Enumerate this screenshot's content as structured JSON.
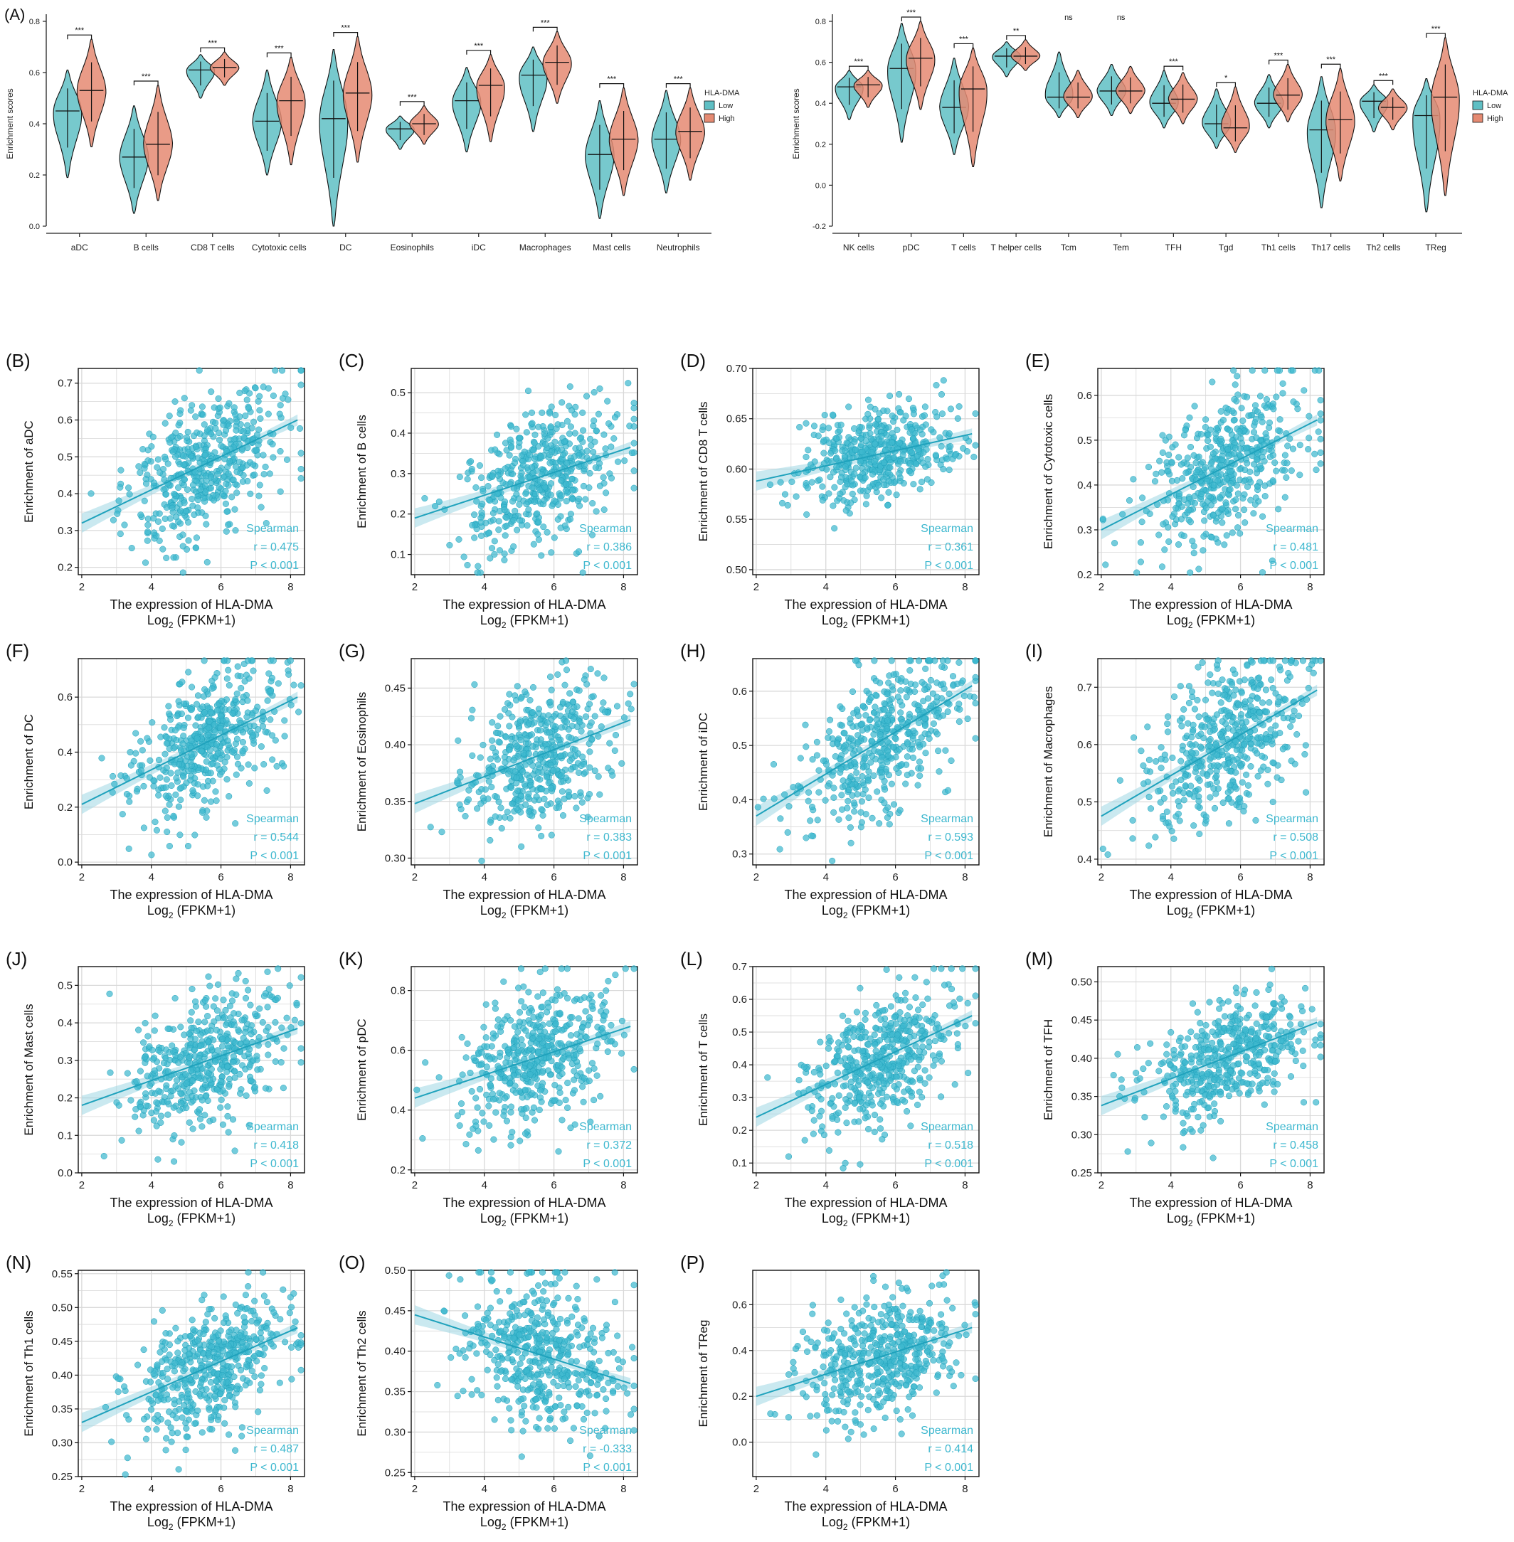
{
  "colors": {
    "low": "#5FBFC4",
    "high": "#E58A72",
    "point": "#3EB8CF",
    "line": "#1FA2BC",
    "band": "#9FD7E3",
    "grid": "#D9D9D9",
    "axis": "#222222"
  },
  "panel_a": {
    "label": "(A)",
    "ylabel": "Enrichment scores",
    "legend_title": "HLA-DMA",
    "legend_low": "Low",
    "legend_high": "High"
  },
  "scatter_common": {
    "xlabel": "The expression of HLA-DMA",
    "xlabel2_main": "Log",
    "xlabel2_sub": "2",
    "xlabel2_tail": " (FPKM+1)",
    "method": "Spearman"
  },
  "chart_data": [
    {
      "type": "violin",
      "panel": "A-left",
      "ylabel": "Enrichment scores",
      "ylim": [
        0.0,
        0.8
      ],
      "yticks": [
        "0.0",
        "0.2",
        "0.4",
        "0.6",
        "0.8"
      ],
      "groups": [
        "Low",
        "High"
      ],
      "legend_title": "HLA-DMA",
      "categories": [
        "aDC",
        "B cells",
        "CD8 T cells",
        "Cytotoxic cells",
        "DC",
        "Eosinophils",
        "iDC",
        "Macrophages",
        "Mast cells",
        "Neutrophils"
      ],
      "significance": [
        "***",
        "***",
        "***",
        "***",
        "***",
        "***",
        "***",
        "***",
        "***",
        "***"
      ],
      "series": [
        {
          "name": "Low",
          "median": [
            0.45,
            0.27,
            0.61,
            0.41,
            0.42,
            0.38,
            0.49,
            0.59,
            0.28,
            0.34
          ],
          "min": [
            0.19,
            0.05,
            0.5,
            0.2,
            0.0,
            0.3,
            0.29,
            0.37,
            0.03,
            0.13
          ],
          "max": [
            0.61,
            0.47,
            0.67,
            0.61,
            0.69,
            0.43,
            0.62,
            0.7,
            0.49,
            0.53
          ]
        },
        {
          "name": "High",
          "median": [
            0.53,
            0.32,
            0.62,
            0.49,
            0.52,
            0.4,
            0.55,
            0.64,
            0.34,
            0.37
          ],
          "min": [
            0.31,
            0.1,
            0.55,
            0.24,
            0.25,
            0.32,
            0.33,
            0.48,
            0.12,
            0.18
          ],
          "max": [
            0.73,
            0.55,
            0.68,
            0.66,
            0.74,
            0.47,
            0.67,
            0.76,
            0.54,
            0.54
          ]
        }
      ]
    },
    {
      "type": "violin",
      "panel": "A-right",
      "ylabel": "Enrichment scores",
      "ylim": [
        -0.2,
        0.8
      ],
      "yticks": [
        "-0.2",
        "0.0",
        "0.2",
        "0.4",
        "0.6",
        "0.8"
      ],
      "groups": [
        "Low",
        "High"
      ],
      "legend_title": "HLA-DMA",
      "categories": [
        "NK cells",
        "pDC",
        "T cells",
        "T helper cells",
        "Tcm",
        "Tem",
        "TFH",
        "Tgd",
        "Th1 cells",
        "Th17 cells",
        "Th2 cells",
        "TReg"
      ],
      "significance": [
        "***",
        "***",
        "***",
        "**",
        "ns",
        "ns",
        "***",
        "*",
        "***",
        "***",
        "***",
        "***"
      ],
      "series": [
        {
          "name": "Low",
          "median": [
            0.48,
            0.57,
            0.38,
            0.63,
            0.43,
            0.46,
            0.4,
            0.3,
            0.4,
            0.27,
            0.41,
            0.34
          ],
          "min": [
            0.32,
            0.21,
            0.15,
            0.53,
            0.33,
            0.34,
            0.28,
            0.18,
            0.28,
            -0.11,
            0.26,
            -0.13
          ],
          "max": [
            0.56,
            0.79,
            0.62,
            0.7,
            0.65,
            0.59,
            0.56,
            0.47,
            0.54,
            0.53,
            0.49,
            0.52
          ]
        },
        {
          "name": "High",
          "median": [
            0.49,
            0.62,
            0.47,
            0.63,
            0.43,
            0.46,
            0.42,
            0.28,
            0.44,
            0.32,
            0.38,
            0.43
          ],
          "min": [
            0.38,
            0.37,
            0.09,
            0.56,
            0.33,
            0.35,
            0.3,
            0.16,
            0.31,
            0.02,
            0.27,
            -0.05
          ],
          "max": [
            0.56,
            0.8,
            0.67,
            0.71,
            0.56,
            0.58,
            0.55,
            0.48,
            0.59,
            0.57,
            0.47,
            0.72
          ]
        }
      ]
    },
    {
      "type": "scatter",
      "panel": "(B)",
      "ylabel": "Enrichment of aDC",
      "ylim": [
        0.18,
        0.74
      ],
      "yticks": [
        "0.2",
        "0.3",
        "0.4",
        "0.5",
        "0.6",
        "0.7"
      ],
      "xlim": [
        1.9,
        8.4
      ],
      "xticks": [
        "2",
        "4",
        "6",
        "8"
      ],
      "r_text": "r = 0.475",
      "p_text": "P < 0.001",
      "fit": {
        "y_at_2": 0.32,
        "y_at_8.2": 0.6
      },
      "points": {
        "n": 480,
        "x_mean": 5.8,
        "x_sd": 1.1,
        "resid_sd": 0.095,
        "seed": 11
      }
    },
    {
      "type": "scatter",
      "panel": "(C)",
      "ylabel": "Enrichment of B cells",
      "ylim": [
        0.05,
        0.56
      ],
      "yticks": [
        "0.1",
        "0.2",
        "0.3",
        "0.4",
        "0.5"
      ],
      "xlim": [
        1.9,
        8.4
      ],
      "xticks": [
        "2",
        "4",
        "6",
        "8"
      ],
      "r_text": "r = 0.386",
      "p_text": "P < 0.001",
      "fit": {
        "y_at_2": 0.19,
        "y_at_8.2": 0.365
      },
      "points": {
        "n": 480,
        "x_mean": 5.8,
        "x_sd": 1.1,
        "resid_sd": 0.085,
        "seed": 12
      }
    },
    {
      "type": "scatter",
      "panel": "(D)",
      "ylabel": "Enrichment of CD8 T cells",
      "ylim": [
        0.495,
        0.7
      ],
      "yticks": [
        "0.50",
        "0.55",
        "0.60",
        "0.65",
        "0.70"
      ],
      "xlim": [
        1.9,
        8.4
      ],
      "xticks": [
        "2",
        "4",
        "6",
        "8"
      ],
      "r_text": "r = 0.361",
      "p_text": "P < 0.001",
      "fit": {
        "y_at_2": 0.588,
        "y_at_8.2": 0.635
      },
      "points": {
        "n": 480,
        "x_mean": 5.8,
        "x_sd": 1.1,
        "resid_sd": 0.022,
        "seed": 13
      }
    },
    {
      "type": "scatter",
      "panel": "(E)",
      "ylabel": "Enrichment of Cytotoxic cells",
      "ylim": [
        0.2,
        0.66
      ],
      "yticks": [
        "0.2",
        "0.3",
        "0.4",
        "0.5",
        "0.6"
      ],
      "xlim": [
        1.9,
        8.4
      ],
      "xticks": [
        "2",
        "4",
        "6",
        "8"
      ],
      "r_text": "r = 0.481",
      "p_text": "P < 0.001",
      "fit": {
        "y_at_2": 0.3,
        "y_at_8.2": 0.545
      },
      "points": {
        "n": 480,
        "x_mean": 5.8,
        "x_sd": 1.1,
        "resid_sd": 0.08,
        "seed": 14
      }
    },
    {
      "type": "scatter",
      "panel": "(F)",
      "ylabel": "Enrichment of DC",
      "ylim": [
        -0.01,
        0.74
      ],
      "yticks": [
        "0.0",
        "0.2",
        "0.4",
        "0.6"
      ],
      "xlim": [
        1.9,
        8.4
      ],
      "xticks": [
        "2",
        "4",
        "6",
        "8"
      ],
      "r_text": "r = 0.544",
      "p_text": "P < 0.001",
      "fit": {
        "y_at_2": 0.21,
        "y_at_8.2": 0.6
      },
      "points": {
        "n": 480,
        "x_mean": 5.8,
        "x_sd": 1.1,
        "resid_sd": 0.11,
        "seed": 15
      }
    },
    {
      "type": "scatter",
      "panel": "(G)",
      "ylabel": "Enrichment of Eosinophils",
      "ylim": [
        0.294,
        0.476
      ],
      "yticks": [
        "0.30",
        "0.35",
        "0.40",
        "0.45"
      ],
      "xlim": [
        1.9,
        8.4
      ],
      "xticks": [
        "2",
        "4",
        "6",
        "8"
      ],
      "r_text": "r = 0.383",
      "p_text": "P < 0.001",
      "fit": {
        "y_at_2": 0.348,
        "y_at_8.2": 0.422
      },
      "points": {
        "n": 480,
        "x_mean": 5.8,
        "x_sd": 1.1,
        "resid_sd": 0.03,
        "seed": 16
      }
    },
    {
      "type": "scatter",
      "panel": "(H)",
      "ylabel": "Enrichment of iDC",
      "ylim": [
        0.28,
        0.66
      ],
      "yticks": [
        "0.3",
        "0.4",
        "0.5",
        "0.6"
      ],
      "xlim": [
        1.9,
        8.4
      ],
      "xticks": [
        "2",
        "4",
        "6",
        "8"
      ],
      "r_text": "r = 0.593",
      "p_text": "P < 0.001",
      "fit": {
        "y_at_2": 0.37,
        "y_at_8.2": 0.61
      },
      "points": {
        "n": 480,
        "x_mean": 5.8,
        "x_sd": 1.1,
        "resid_sd": 0.065,
        "seed": 17
      }
    },
    {
      "type": "scatter",
      "panel": "(I)",
      "ylabel": "Enrichment of Macrophages",
      "ylim": [
        0.39,
        0.75
      ],
      "yticks": [
        "0.4",
        "0.5",
        "0.6",
        "0.7"
      ],
      "xlim": [
        1.9,
        8.4
      ],
      "xticks": [
        "2",
        "4",
        "6",
        "8"
      ],
      "r_text": "r = 0.508",
      "p_text": "P < 0.001",
      "fit": {
        "y_at_2": 0.475,
        "y_at_8.2": 0.695
      },
      "points": {
        "n": 480,
        "x_mean": 5.8,
        "x_sd": 1.1,
        "resid_sd": 0.065,
        "seed": 18
      }
    },
    {
      "type": "scatter",
      "panel": "(J)",
      "ylabel": "Enrichment of Mast cells",
      "ylim": [
        0.0,
        0.55
      ],
      "yticks": [
        "0.0",
        "0.1",
        "0.2",
        "0.3",
        "0.4",
        "0.5"
      ],
      "xlim": [
        1.9,
        8.4
      ],
      "xticks": [
        "2",
        "4",
        "6",
        "8"
      ],
      "r_text": "r = 0.418",
      "p_text": "P < 0.001",
      "fit": {
        "y_at_2": 0.18,
        "y_at_8.2": 0.385
      },
      "points": {
        "n": 480,
        "x_mean": 5.8,
        "x_sd": 1.1,
        "resid_sd": 0.085,
        "seed": 19
      }
    },
    {
      "type": "scatter",
      "panel": "(K)",
      "ylabel": "Enrichment of pDC",
      "ylim": [
        0.19,
        0.88
      ],
      "yticks": [
        "0.2",
        "0.4",
        "0.6",
        "0.8"
      ],
      "xlim": [
        1.9,
        8.4
      ],
      "xticks": [
        "2",
        "4",
        "6",
        "8"
      ],
      "r_text": "r = 0.372",
      "p_text": "P < 0.001",
      "fit": {
        "y_at_2": 0.44,
        "y_at_8.2": 0.68
      },
      "points": {
        "n": 480,
        "x_mean": 5.8,
        "x_sd": 1.1,
        "resid_sd": 0.11,
        "seed": 20
      }
    },
    {
      "type": "scatter",
      "panel": "(L)",
      "ylabel": "Enrichment of T cells",
      "ylim": [
        0.07,
        0.7
      ],
      "yticks": [
        "0.1",
        "0.2",
        "0.3",
        "0.4",
        "0.5",
        "0.6",
        "0.7"
      ],
      "xlim": [
        1.9,
        8.4
      ],
      "xticks": [
        "2",
        "4",
        "6",
        "8"
      ],
      "r_text": "r = 0.518",
      "p_text": "P < 0.001",
      "fit": {
        "y_at_2": 0.24,
        "y_at_8.2": 0.55
      },
      "points": {
        "n": 480,
        "x_mean": 5.8,
        "x_sd": 1.1,
        "resid_sd": 0.095,
        "seed": 21
      }
    },
    {
      "type": "scatter",
      "panel": "(M)",
      "ylabel": "Enrichment of TFH",
      "ylim": [
        0.25,
        0.52
      ],
      "yticks": [
        "0.25",
        "0.30",
        "0.35",
        "0.40",
        "0.45",
        "0.50"
      ],
      "xlim": [
        1.9,
        8.4
      ],
      "xticks": [
        "2",
        "4",
        "6",
        "8"
      ],
      "r_text": "r = 0.458",
      "p_text": "P < 0.001",
      "fit": {
        "y_at_2": 0.338,
        "y_at_8.2": 0.447
      },
      "points": {
        "n": 480,
        "x_mean": 5.8,
        "x_sd": 1.1,
        "resid_sd": 0.035,
        "seed": 22
      }
    },
    {
      "type": "scatter",
      "panel": "(N)",
      "ylabel": "Enrichment of Th1 cells",
      "ylim": [
        0.25,
        0.555
      ],
      "yticks": [
        "0.25",
        "0.30",
        "0.35",
        "0.40",
        "0.45",
        "0.50",
        "0.55"
      ],
      "xlim": [
        1.9,
        8.4
      ],
      "xticks": [
        "2",
        "4",
        "6",
        "8"
      ],
      "r_text": "r = 0.487",
      "p_text": "P < 0.001",
      "fit": {
        "y_at_2": 0.33,
        "y_at_8.2": 0.47
      },
      "points": {
        "n": 480,
        "x_mean": 5.8,
        "x_sd": 1.1,
        "resid_sd": 0.045,
        "seed": 23
      }
    },
    {
      "type": "scatter",
      "panel": "(O)",
      "ylabel": "Enrichment of Th2 cells",
      "ylim": [
        0.245,
        0.5
      ],
      "yticks": [
        "0.25",
        "0.30",
        "0.35",
        "0.40",
        "0.45",
        "0.50"
      ],
      "xlim": [
        1.9,
        8.4
      ],
      "xticks": [
        "2",
        "4",
        "6",
        "8"
      ],
      "r_text": "r = -0.333",
      "p_text": "P < 0.001",
      "fit": {
        "y_at_2": 0.445,
        "y_at_8.2": 0.36
      },
      "points": {
        "n": 480,
        "x_mean": 5.8,
        "x_sd": 1.1,
        "resid_sd": 0.045,
        "seed": 24
      }
    },
    {
      "type": "scatter",
      "panel": "(P)",
      "ylabel": "Enrichment of TReg",
      "ylim": [
        -0.15,
        0.75
      ],
      "yticks": [
        "0.0",
        "0.2",
        "0.4",
        "0.6"
      ],
      "xlim": [
        1.9,
        8.4
      ],
      "xticks": [
        "2",
        "4",
        "6",
        "8"
      ],
      "r_text": "r = 0.414",
      "p_text": "P < 0.001",
      "fit": {
        "y_at_2": 0.2,
        "y_at_8.2": 0.5
      },
      "points": {
        "n": 480,
        "x_mean": 5.8,
        "x_sd": 1.1,
        "resid_sd": 0.13,
        "seed": 25
      }
    }
  ]
}
